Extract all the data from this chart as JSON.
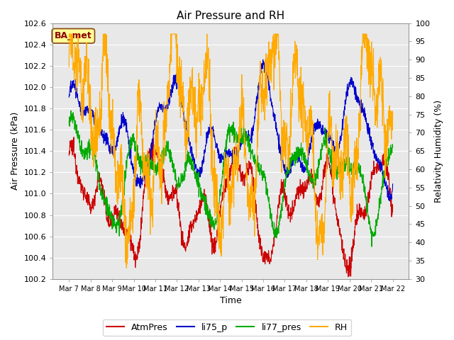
{
  "title": "Air Pressure and RH",
  "xlabel": "Time",
  "ylabel_left": "Air Pressure (kPa)",
  "ylabel_right": "Relativity Humidity (%)",
  "annotation": "BA_met",
  "ylim_left": [
    100.2,
    102.6
  ],
  "ylim_right": [
    30,
    100
  ],
  "yticks_left": [
    100.2,
    100.4,
    100.6,
    100.8,
    101.0,
    101.2,
    101.4,
    101.6,
    101.8,
    102.0,
    102.2,
    102.4,
    102.6
  ],
  "yticks_right": [
    30,
    35,
    40,
    45,
    50,
    55,
    60,
    65,
    70,
    75,
    80,
    85,
    90,
    95,
    100
  ],
  "xtick_labels": [
    "Mar 7",
    "Mar 8",
    "Mar 9",
    "Mar 10",
    "Mar 11",
    "Mar 12",
    "Mar 13",
    "Mar 14",
    "Mar 15",
    "Mar 16",
    "Mar 17",
    "Mar 18",
    "Mar 19",
    "Mar 20",
    "Mar 21",
    "Mar 22"
  ],
  "n_points": 1500,
  "colors": {
    "AtmPres": "#cc0000",
    "li75_p": "#0000cc",
    "li77_pres": "#00aa00",
    "RH": "#ffaa00"
  },
  "legend_labels": [
    "AtmPres",
    "li75_p",
    "li77_pres",
    "RH"
  ],
  "background_color": "#e8e8e8",
  "grid_color": "#ffffff",
  "annotation_bg": "#ffff99",
  "annotation_border": "#8B4513",
  "annotation_text_color": "#8B0000",
  "title_fontsize": 11,
  "axis_label_fontsize": 9,
  "tick_fontsize": 8,
  "legend_fontsize": 9
}
